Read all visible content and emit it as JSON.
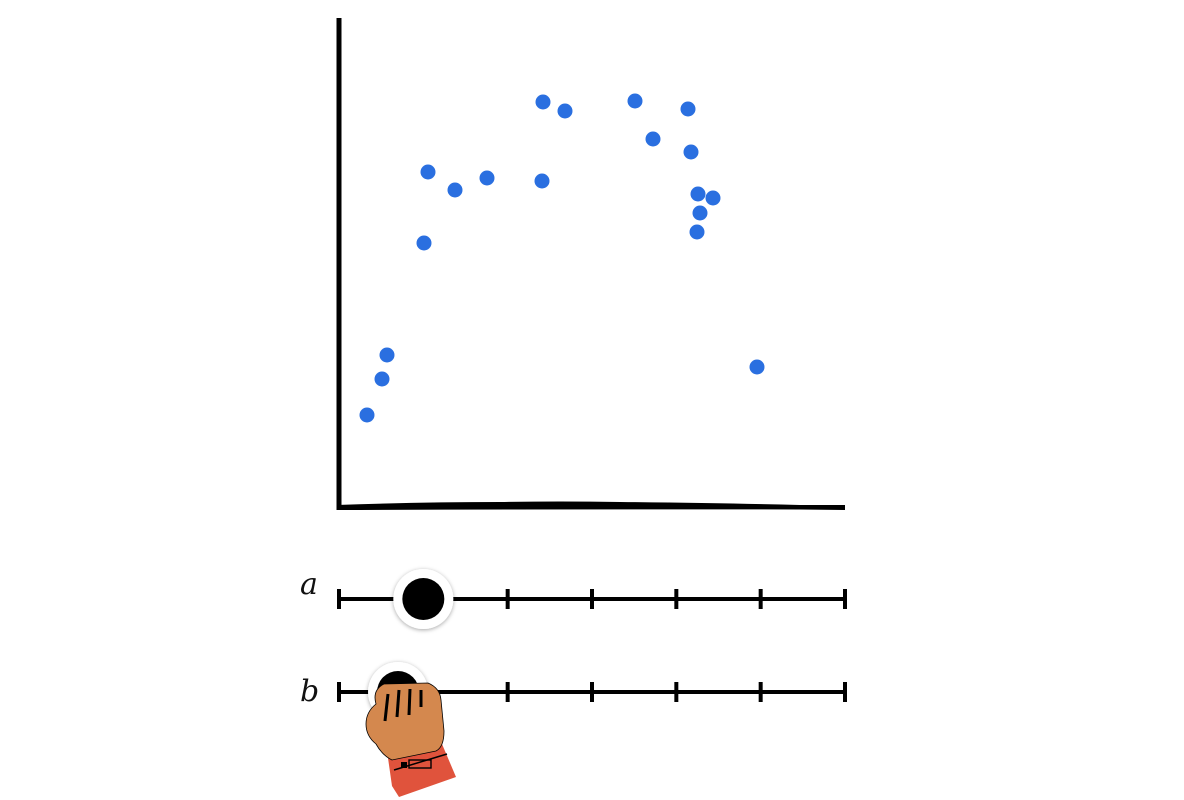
{
  "chart_data": {
    "type": "scatter",
    "title": "",
    "xlabel": "",
    "ylabel": "",
    "xlim": [
      0,
      100
    ],
    "ylim": [
      0,
      100
    ],
    "grid": false,
    "legend": "none",
    "point_color": "#2a6fe0",
    "axis_color": "#000000",
    "x": [
      5.6,
      8.6,
      9.6,
      17.0,
      17.8,
      23.2,
      29.6,
      40.6,
      40.8,
      45.2,
      59.2,
      62.8,
      69.8,
      70.4,
      71.6,
      71.8,
      72.2,
      74.8,
      83.6
    ],
    "y": [
      18.0,
      25.2,
      30.0,
      52.4,
      66.6,
      63.0,
      65.4,
      64.8,
      80.6,
      78.8,
      80.8,
      73.2,
      79.2,
      70.6,
      54.6,
      62.2,
      58.4,
      61.4,
      27.6
    ]
  },
  "sliders": [
    {
      "label": "a",
      "value": 1,
      "ticks": [
        0,
        1,
        2,
        3,
        4,
        5,
        6
      ],
      "min": 0,
      "max": 6
    },
    {
      "label": "b",
      "value": 0.7,
      "ticks": [
        0,
        1,
        2,
        3,
        4,
        5,
        6
      ],
      "min": 0,
      "max": 6
    }
  ],
  "colors": {
    "knob_fill": "#000000",
    "knob_ring": "#ffffff",
    "hand_skin": "#d4884e",
    "hand_cuff": "#e0533c"
  },
  "cursor_icon": "grabbing-hand-icon"
}
